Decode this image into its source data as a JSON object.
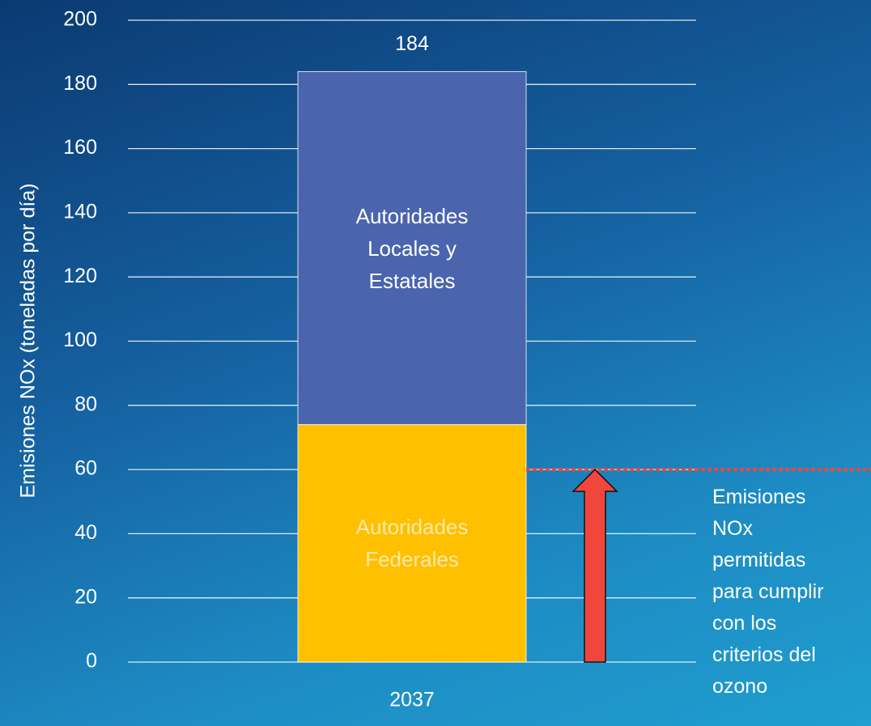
{
  "chart_data": {
    "type": "stacked_bar",
    "ylabel": "Emisiones NOx (toneladas por día)",
    "categories": [
      "2037"
    ],
    "series": [
      {
        "name": "Autoridades Federales",
        "color": "#ffc000",
        "label_color": "#ffe9a8",
        "values": [
          74
        ]
      },
      {
        "name": "Autoridades Locales y Estatales",
        "color": "#4a64ae",
        "label_color": "#ffffff",
        "values": [
          110
        ]
      }
    ],
    "totals": [
      184
    ],
    "threshold": {
      "value": 60,
      "label": "Emisiones NOx permitidas para cumplir con los criterios del ozono",
      "color": "#f0463c"
    },
    "ylim": [
      0,
      200
    ],
    "yticks": [
      0,
      20,
      40,
      60,
      80,
      100,
      120,
      140,
      160,
      180,
      200
    ],
    "grid": true
  }
}
